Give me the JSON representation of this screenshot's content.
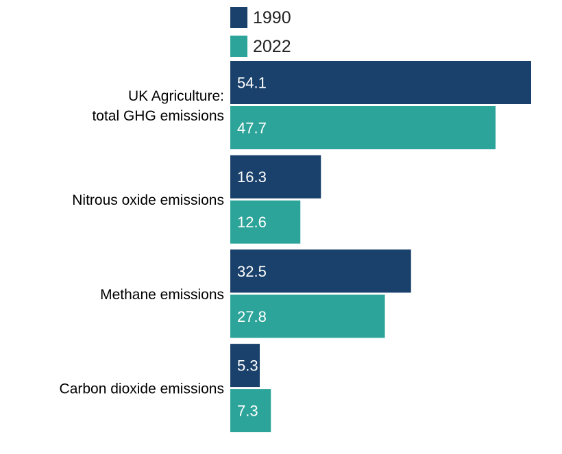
{
  "chart_data": {
    "type": "bar",
    "orientation": "horizontal",
    "categories": [
      [
        "UK Agriculture:",
        "total GHG emissions"
      ],
      [
        "Nitrous oxide emissions"
      ],
      [
        "Methane emissions"
      ],
      [
        "Carbon dioxide emissions"
      ]
    ],
    "series": [
      {
        "name": "1990",
        "values": [
          54.1,
          16.3,
          32.5,
          5.3
        ],
        "color": "#1a416b"
      },
      {
        "name": "2022",
        "values": [
          47.7,
          12.6,
          27.8,
          7.3
        ],
        "color": "#2ca499"
      }
    ],
    "xlim": [
      0,
      54.1
    ],
    "grid": false,
    "legend": "top",
    "data_labels": true
  }
}
